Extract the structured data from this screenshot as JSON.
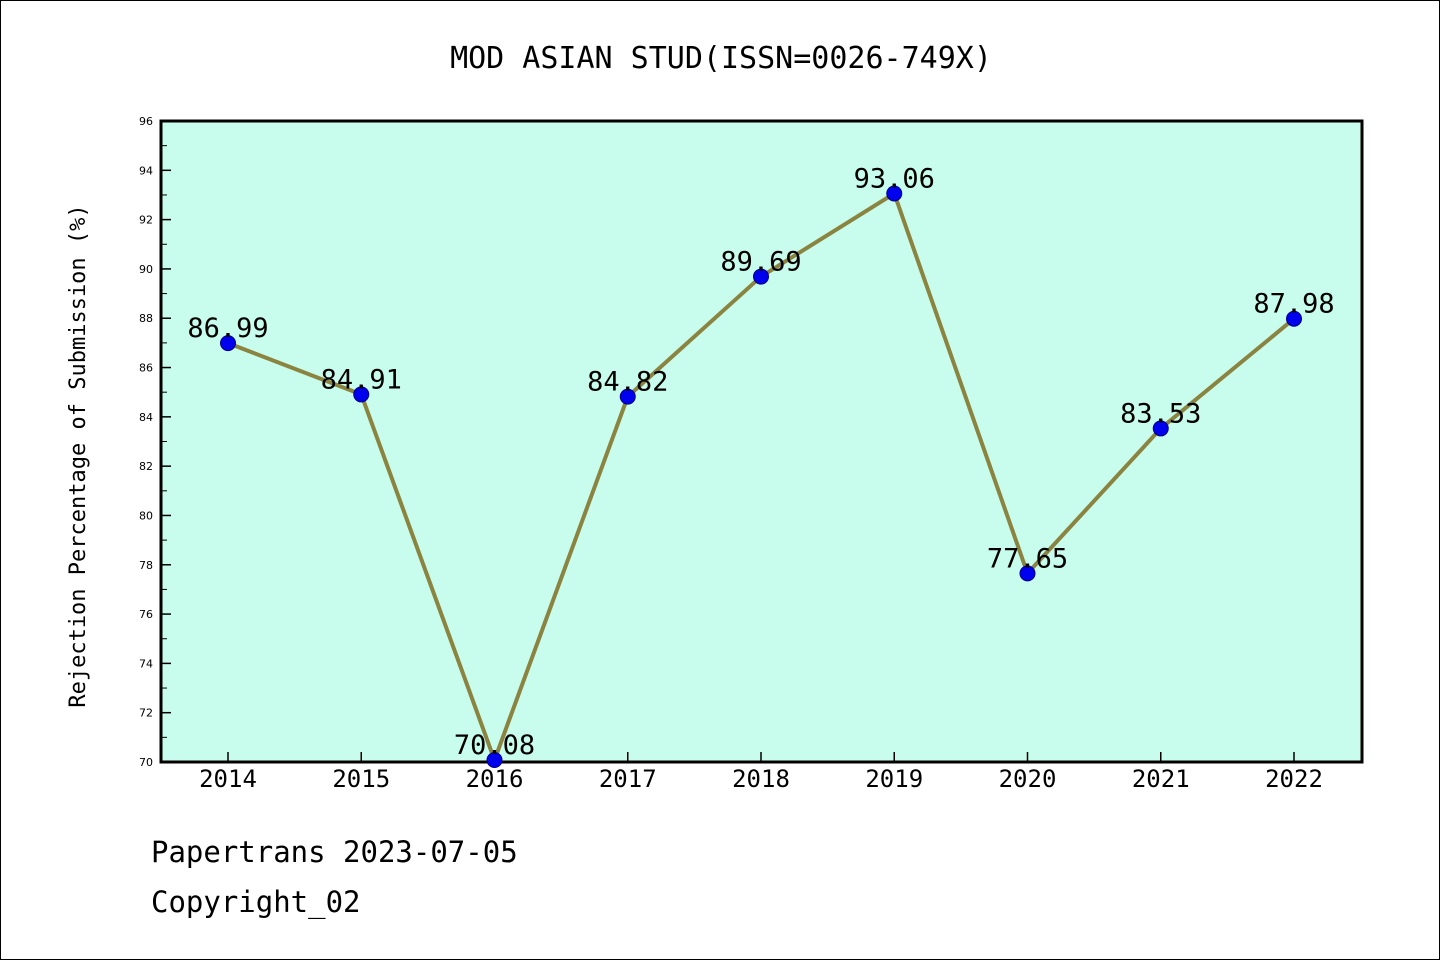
{
  "chart_data": {
    "type": "line",
    "title": "MOD ASIAN STUD(ISSN=0026-749X)",
    "xlabel": "",
    "ylabel": "Rejection Percentage of Submission (%)",
    "categories": [
      "2014",
      "2015",
      "2016",
      "2017",
      "2018",
      "2019",
      "2020",
      "2021",
      "2022"
    ],
    "values": [
      86.99,
      84.91,
      70.08,
      84.82,
      89.69,
      93.06,
      77.65,
      83.53,
      87.98
    ],
    "data_labels": [
      "86.99",
      "84.91",
      "70.08",
      "84.82",
      "89.69",
      "93.06",
      "77.65",
      "83.53",
      "87.98"
    ],
    "ylim": [
      70,
      96
    ],
    "yticks": [
      70,
      72,
      74,
      76,
      78,
      80,
      82,
      84,
      86,
      88,
      90,
      92,
      94,
      96
    ],
    "grid": false,
    "legend": "none",
    "colors": {
      "plot_background": "#c8fcec",
      "line": "#8b8440",
      "marker": "#0000ee",
      "marker_edge": "#000080"
    }
  },
  "footer": {
    "date_text": "Papertrans 2023-07-05",
    "copyright_text": "Copyright_02"
  }
}
